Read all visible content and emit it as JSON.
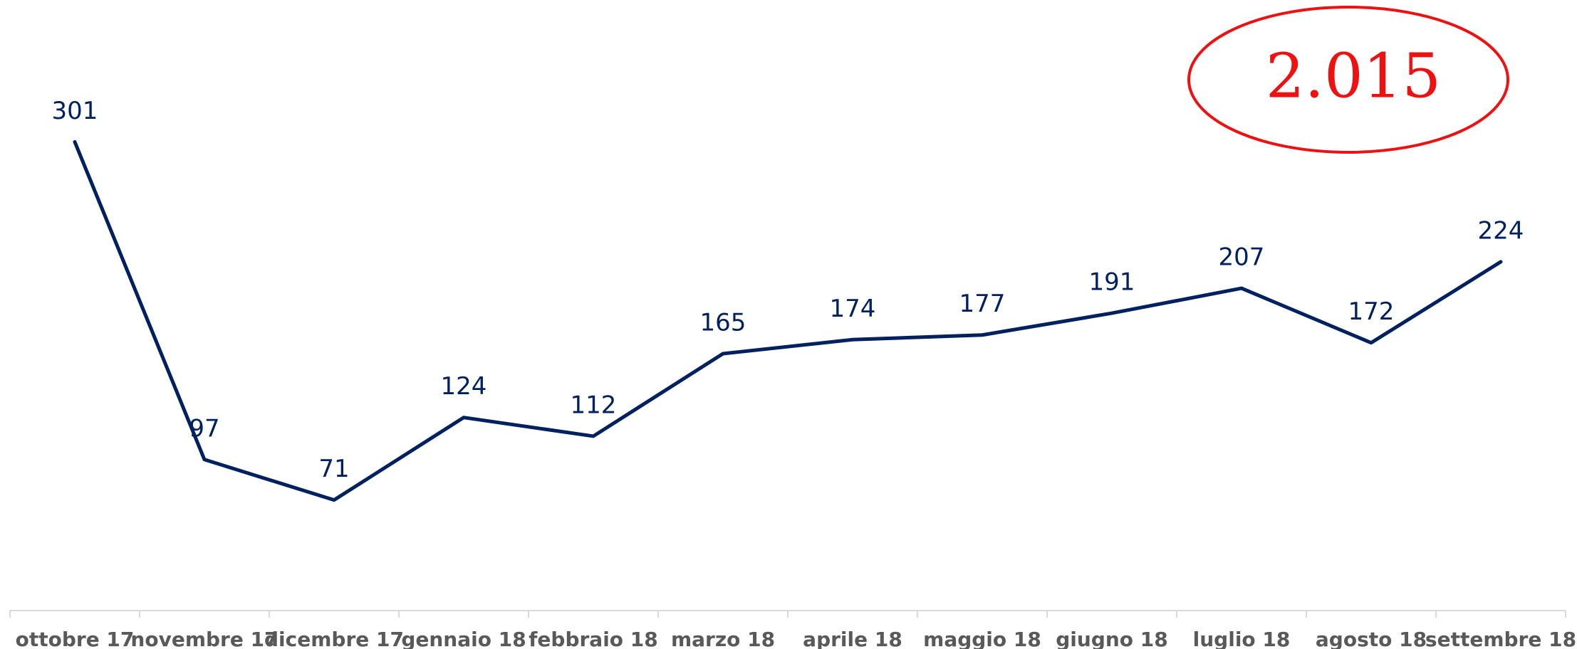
{
  "chart_data": {
    "type": "line",
    "categories": [
      "ottobre 17",
      "novembre 17",
      "dicembre 17",
      "gennaio 18",
      "febbraio 18",
      "marzo 18",
      "aprile 18",
      "maggio 18",
      "giugno 18",
      "luglio 18",
      "agosto 18",
      "settembre 18"
    ],
    "values": [
      301,
      97,
      71,
      124,
      112,
      165,
      174,
      177,
      191,
      207,
      172,
      224
    ],
    "color": "#002060",
    "ylim": [
      0,
      383
    ],
    "annotation": "2.015",
    "annotation_color": "#ee1111"
  }
}
